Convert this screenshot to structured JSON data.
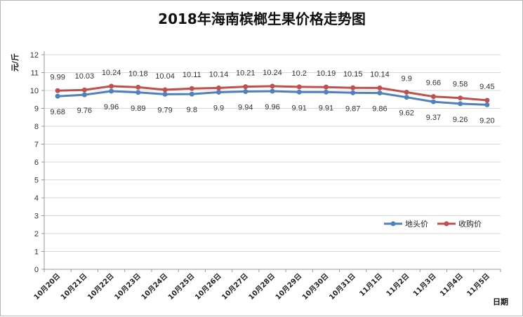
{
  "chart_data": {
    "type": "line",
    "title": "2018年海南槟榔生果价格走势图",
    "ylabel": "元/斤",
    "xlabel": "日期",
    "ylim": [
      0,
      12
    ],
    "yticks": [
      0,
      1,
      2,
      3,
      4,
      5,
      6,
      7,
      8,
      9,
      10,
      11,
      12
    ],
    "grid": true,
    "legend_position": "right",
    "categories": [
      "10月20日",
      "10月21日",
      "10月22日",
      "10月23日",
      "10月24日",
      "10月25日",
      "10月26日",
      "10月27日",
      "10月28日",
      "10月29日",
      "10月30日",
      "10月31日",
      "11月1日",
      "11月2日",
      "11月3日",
      "11月4日",
      "11月5日"
    ],
    "series": [
      {
        "name": "地头价",
        "color": "#4f81bd",
        "values": [
          9.68,
          9.76,
          9.96,
          9.89,
          9.79,
          9.8,
          9.9,
          9.94,
          9.96,
          9.91,
          9.91,
          9.87,
          9.86,
          9.62,
          9.37,
          9.26,
          9.2
        ],
        "labels": [
          "9.68",
          "9.76",
          "9.96",
          "9.89",
          "9.79",
          "9.8",
          "9.9",
          "9.94",
          "9.96",
          "9.91",
          "9.91",
          "9.87",
          "9.86",
          "9.62",
          "9.37",
          "9.26",
          "9.20"
        ]
      },
      {
        "name": "收购价",
        "color": "#c0504d",
        "values": [
          9.99,
          10.03,
          10.24,
          10.18,
          10.04,
          10.11,
          10.14,
          10.21,
          10.24,
          10.2,
          10.19,
          10.15,
          10.14,
          9.9,
          9.66,
          9.58,
          9.45
        ],
        "labels": [
          "9.99",
          "10.03",
          "10.24",
          "10.18",
          "10.04",
          "10.11",
          "10.14",
          "10.21",
          "10.24",
          "10.2",
          "10.19",
          "10.15",
          "10.14",
          "9.9",
          "9.66",
          "9.58",
          "9.45"
        ]
      }
    ]
  }
}
